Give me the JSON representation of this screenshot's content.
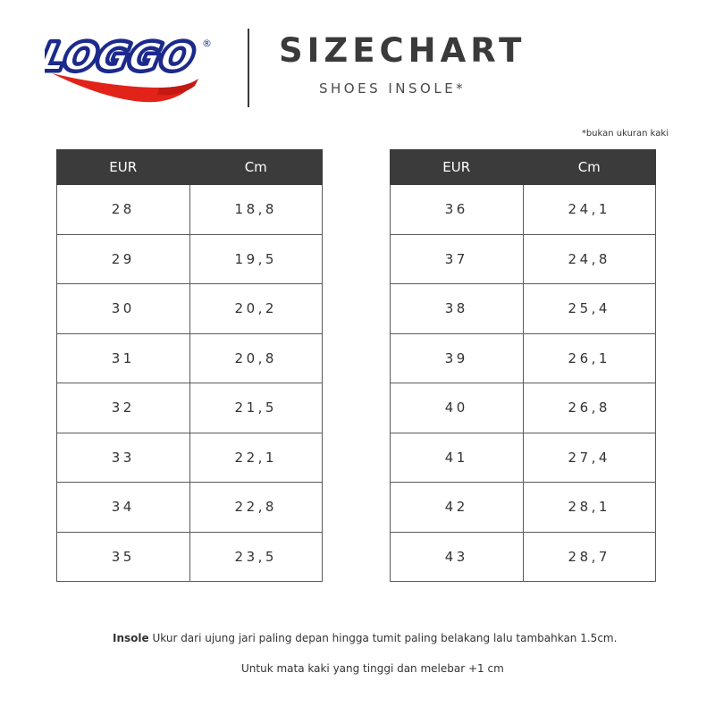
{
  "brand": {
    "logo_text": "LOGGO",
    "registered_mark": "®",
    "colors": {
      "blue": "#1c2a8c",
      "red": "#e2231a"
    }
  },
  "header": {
    "title": "SIZECHART",
    "subtitle": "SHOES INSOLE*"
  },
  "note": "*bukan ukuran kaki",
  "columns": [
    "EUR",
    "Cm"
  ],
  "left_table": [
    {
      "eur": "28",
      "cm": "18,8"
    },
    {
      "eur": "29",
      "cm": "19,5"
    },
    {
      "eur": "30",
      "cm": "20,2"
    },
    {
      "eur": "31",
      "cm": "20,8"
    },
    {
      "eur": "32",
      "cm": "21,5"
    },
    {
      "eur": "33",
      "cm": "22,1"
    },
    {
      "eur": "34",
      "cm": "22,8"
    },
    {
      "eur": "35",
      "cm": "23,5"
    }
  ],
  "right_table": [
    {
      "eur": "36",
      "cm": "24,1"
    },
    {
      "eur": "37",
      "cm": "24,8"
    },
    {
      "eur": "38",
      "cm": "25,4"
    },
    {
      "eur": "39",
      "cm": "26,1"
    },
    {
      "eur": "40",
      "cm": "26,8"
    },
    {
      "eur": "41",
      "cm": "27,4"
    },
    {
      "eur": "42",
      "cm": "28,1"
    },
    {
      "eur": "43",
      "cm": "28,7"
    }
  ],
  "footer": {
    "insole_label": "Insole",
    "insole_text": " Ukur dari ujung jari paling depan hingga tumit paling belakang lalu tambahkan 1.5cm.",
    "line2": "Untuk mata kaki yang tinggi dan melebar +1 cm"
  }
}
